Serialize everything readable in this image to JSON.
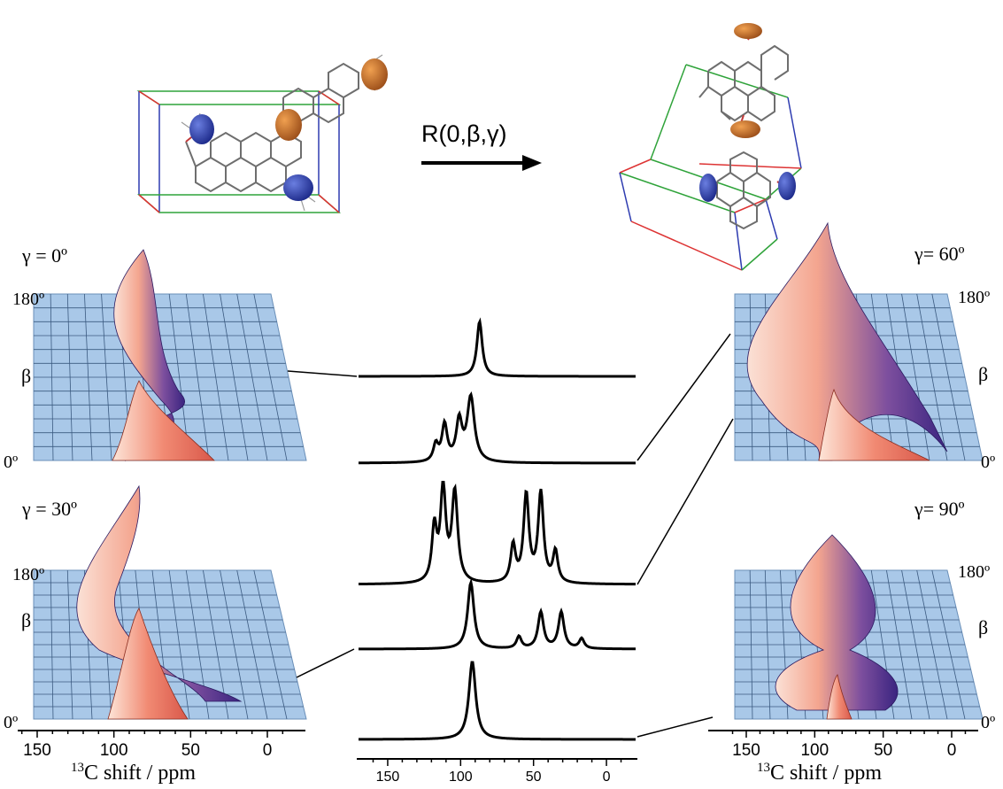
{
  "transform": {
    "label": "R(0,β,γ)"
  },
  "panels": [
    {
      "gamma_label": "γ = 0º",
      "y_top": "180º",
      "y_mid": "β",
      "y_bottom": "0º"
    },
    {
      "gamma_label": "γ = 30º",
      "y_top": "180º",
      "y_mid": "β",
      "y_bottom": "0º"
    },
    {
      "gamma_label": "γ= 60º",
      "y_top": "180º",
      "y_mid": "β",
      "y_bottom": "0º"
    },
    {
      "gamma_label": "γ= 90º",
      "y_top": "180º",
      "y_mid": "β",
      "y_bottom": "0º"
    }
  ],
  "axes": {
    "left": {
      "ticks": [
        "150",
        "100",
        "50",
        "0"
      ],
      "label_sup": "13",
      "label_rest": "C shift / ppm"
    },
    "center": {
      "ticks": [
        "150",
        "100",
        "50",
        "0"
      ]
    },
    "right": {
      "ticks": [
        "150",
        "100",
        "50",
        "0"
      ],
      "label_sup": "13",
      "label_rest": "C shift / ppm"
    }
  },
  "spectra": [
    {
      "peaks": [
        [
          87,
          1.0,
          2.2
        ]
      ]
    },
    {
      "peaks": [
        [
          117,
          0.22,
          2.0
        ],
        [
          111,
          0.48,
          2.2
        ],
        [
          101,
          0.52,
          2.4
        ],
        [
          93,
          0.85,
          3.0
        ]
      ]
    },
    {
      "peaks": [
        [
          118,
          0.55,
          2.0
        ],
        [
          112,
          0.95,
          2.2
        ],
        [
          104,
          0.92,
          2.4
        ],
        [
          64,
          0.38,
          2.0
        ],
        [
          55,
          0.9,
          2.2
        ],
        [
          45,
          0.92,
          2.2
        ],
        [
          35,
          0.32,
          2.0
        ]
      ]
    },
    {
      "peaks": [
        [
          93,
          1.0,
          2.6
        ],
        [
          60,
          0.18,
          2.0
        ],
        [
          45,
          0.55,
          2.3
        ],
        [
          31,
          0.55,
          2.3
        ],
        [
          17,
          0.15,
          2.0
        ]
      ]
    },
    {
      "peaks": [
        [
          92,
          1.0,
          2.8
        ]
      ]
    }
  ],
  "colors": {
    "surface_blue": "#a9c8e8",
    "peak_red": "#f18a73",
    "ridge_purple": "#4b2f8a",
    "ellipsoid_blue": "#2b3fa8",
    "ellipsoid_orange": "#c8702a"
  }
}
